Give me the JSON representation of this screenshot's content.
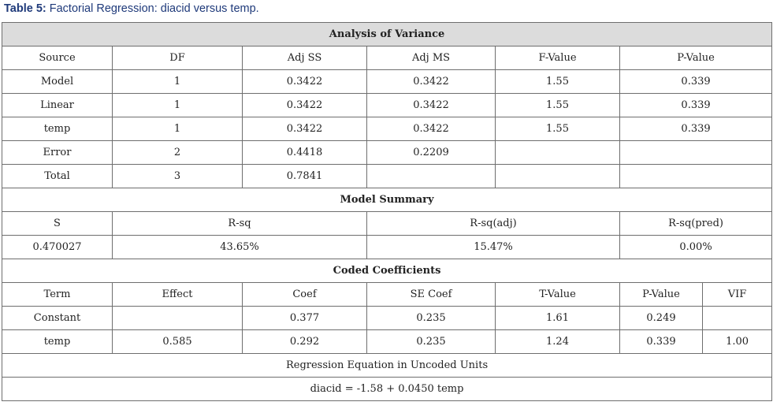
{
  "caption": {
    "label": "Table 5:",
    "text": " Factorial Regression: diacid versus temp."
  },
  "anova": {
    "title": "Analysis of Variance",
    "headers": [
      "Source",
      "DF",
      "Adj SS",
      "Adj MS",
      "F-Value",
      "P-Value"
    ],
    "rows": [
      [
        "Model",
        "1",
        "0.3422",
        "0.3422",
        "1.55",
        "0.339"
      ],
      [
        "Linear",
        "1",
        "0.3422",
        "0.3422",
        "1.55",
        "0.339"
      ],
      [
        "temp",
        "1",
        "0.3422",
        "0.3422",
        "1.55",
        "0.339"
      ],
      [
        "Error",
        "2",
        "0.4418",
        "0.2209",
        "",
        ""
      ],
      [
        "Total",
        "3",
        "0.7841",
        "",
        "",
        ""
      ]
    ]
  },
  "model_summary": {
    "title": "Model Summary",
    "headers": [
      "S",
      "R-sq",
      "R-sq(adj)",
      "R-sq(pred)"
    ],
    "values": [
      "0.470027",
      "43.65%",
      "15.47%",
      "0.00%"
    ]
  },
  "coded_coefficients": {
    "title": "Coded Coefficients",
    "headers": [
      "Term",
      "Effect",
      "Coef",
      "SE Coef",
      "T-Value",
      "P-Value",
      "VIF"
    ],
    "rows": [
      [
        "Constant",
        "",
        "0.377",
        "0.235",
        "1.61",
        "0.249",
        ""
      ],
      [
        "temp",
        "0.585",
        "0.292",
        "0.235",
        "1.24",
        "0.339",
        "1.00"
      ]
    ]
  },
  "regression_equation": {
    "title": "Regression Equation in Uncoded Units",
    "equation": "diacid = -1.58 + 0.0450 temp"
  }
}
